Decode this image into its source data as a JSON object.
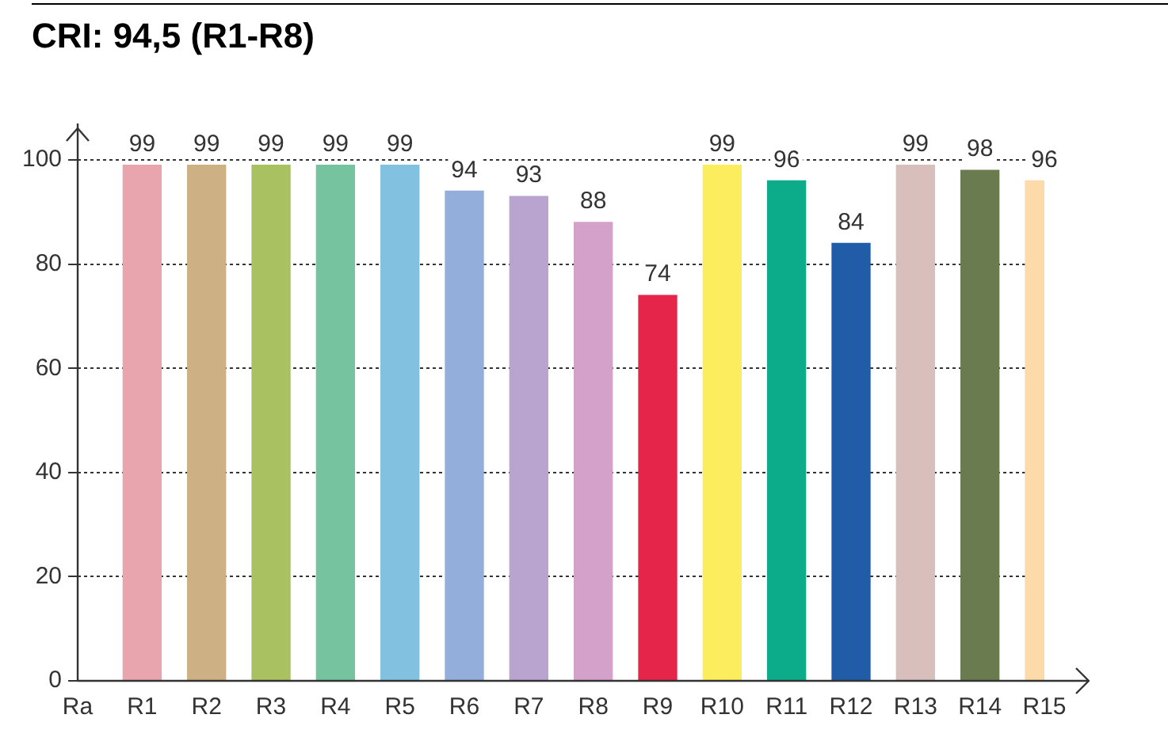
{
  "chart_data": {
    "type": "bar",
    "title": "CRI: 94,5 (R1-R8)",
    "categories": [
      "Ra",
      "R1",
      "R2",
      "R3",
      "R4",
      "R5",
      "R6",
      "R7",
      "R8",
      "R9",
      "R10",
      "R11",
      "R12",
      "R13",
      "R14",
      "R15"
    ],
    "values": [
      null,
      99,
      99,
      99,
      99,
      99,
      94,
      93,
      88,
      74,
      99,
      96,
      84,
      99,
      98,
      96
    ],
    "data_labels": true,
    "colors": [
      "#ffffff",
      "#e8a5ae",
      "#cdb083",
      "#a9c160",
      "#76c3a0",
      "#82c1e0",
      "#93aedb",
      "#b9a3cf",
      "#d3a1c9",
      "#e5264a",
      "#fced5e",
      "#0cac8a",
      "#215ca8",
      "#d9bfbb",
      "#6a7b4f",
      "#fddaa9"
    ],
    "ylim": [
      0,
      107
    ],
    "yticks": [
      0,
      20,
      40,
      60,
      80,
      100
    ],
    "grid": "y",
    "legend": false
  }
}
